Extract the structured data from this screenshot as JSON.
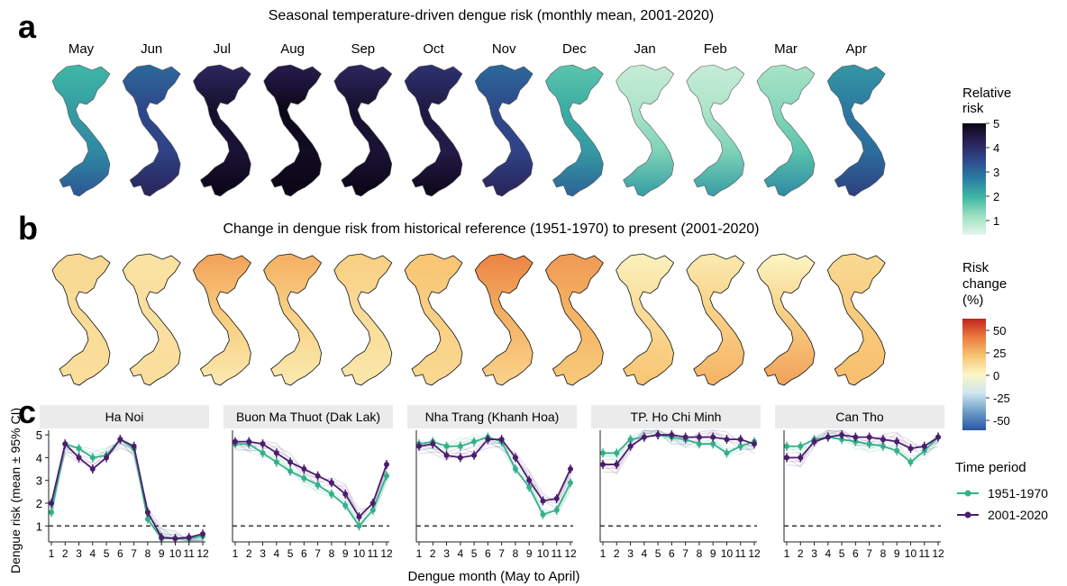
{
  "panel_a": {
    "letter": "a",
    "title": "Seasonal temperature-driven dengue risk (monthly mean, 2001-2020)",
    "months": [
      "May",
      "Jun",
      "Jul",
      "Aug",
      "Sep",
      "Oct",
      "Nov",
      "Dec",
      "Jan",
      "Feb",
      "Mar",
      "Apr"
    ],
    "month_levels": [
      0.35,
      0.6,
      0.85,
      0.9,
      0.85,
      0.8,
      0.6,
      0.3,
      0.08,
      0.08,
      0.15,
      0.45
    ],
    "legend_title": [
      "Relative",
      "risk"
    ],
    "legend_ticks": [
      "5",
      "4",
      "3",
      "2",
      "1"
    ],
    "colors": [
      "#e6f6ec",
      "#9fe0c1",
      "#3fb8a4",
      "#2b7fa3",
      "#2e4a8e",
      "#2c2158",
      "#0a0514"
    ]
  },
  "panel_b": {
    "letter": "b",
    "title": "Change in dengue risk from historical reference (1951-1970) to present (2001-2020)",
    "north_change": [
      12,
      8,
      30,
      26,
      16,
      20,
      38,
      32,
      2,
      5,
      0,
      12
    ],
    "south_change": [
      10,
      10,
      5,
      5,
      6,
      12,
      14,
      18,
      20,
      25,
      30,
      22
    ],
    "legend_title": [
      "Risk",
      "change",
      "(%)"
    ],
    "legend_ticks": [
      "50",
      "25",
      "0",
      "-25",
      "-50"
    ],
    "colors": [
      "#2a55a5",
      "#6d9dc9",
      "#cfe6ef",
      "#fbf6c4",
      "#f8c572",
      "#ea7c3e",
      "#c4231f"
    ]
  },
  "panel_c": {
    "letter": "c",
    "y_axis_label": "Dengue risk (mean ± 95% CI)",
    "x_axis_label": "Dengue month (May to April)"
  },
  "legend_c": {
    "title": "Time period",
    "items": [
      {
        "label": "1951-1970",
        "color": "#34b08a"
      },
      {
        "label": "2001-2020",
        "color": "#4b1d6e"
      }
    ]
  },
  "chart_data": {
    "type": "line",
    "x": [
      1,
      2,
      3,
      4,
      5,
      6,
      7,
      8,
      9,
      10,
      11,
      12
    ],
    "ylim": [
      0.3,
      5.2
    ],
    "yticks": [
      1,
      2,
      3,
      4,
      5
    ],
    "reference_line": 1,
    "panels": [
      {
        "title": "Ha Noi",
        "series": [
          {
            "name": "1951-1970",
            "values": [
              1.6,
              4.6,
              4.4,
              4.0,
              4.1,
              4.8,
              4.4,
              1.3,
              0.45,
              0.45,
              0.45,
              0.55
            ]
          },
          {
            "name": "2001-2020",
            "values": [
              2.0,
              4.6,
              4.0,
              3.5,
              4.0,
              4.8,
              4.5,
              1.6,
              0.5,
              0.45,
              0.5,
              0.65
            ]
          }
        ]
      },
      {
        "title": "Buon Ma Thuot (Dak Lak)",
        "series": [
          {
            "name": "1951-1970",
            "values": [
              4.6,
              4.6,
              4.2,
              3.8,
              3.4,
              3.1,
              2.8,
              2.4,
              1.9,
              1.0,
              1.7,
              3.2
            ]
          },
          {
            "name": "2001-2020",
            "values": [
              4.7,
              4.7,
              4.6,
              4.2,
              3.8,
              3.5,
              3.2,
              2.9,
              2.4,
              1.4,
              2.0,
              3.7
            ]
          }
        ]
      },
      {
        "title": "Nha Trang (Khanh Hoa)",
        "series": [
          {
            "name": "1951-1970",
            "values": [
              4.6,
              4.7,
              4.5,
              4.5,
              4.7,
              4.9,
              4.7,
              3.5,
              2.7,
              1.5,
              1.7,
              2.9
            ]
          },
          {
            "name": "2001-2020",
            "values": [
              4.5,
              4.6,
              4.1,
              4.0,
              4.1,
              4.8,
              4.8,
              4.0,
              3.0,
              2.1,
              2.2,
              3.5
            ]
          }
        ]
      },
      {
        "title": "TP. Ho Chi Minh",
        "series": [
          {
            "name": "1951-1970",
            "values": [
              4.2,
              4.2,
              4.8,
              4.9,
              5.0,
              4.9,
              4.8,
              4.6,
              4.6,
              4.2,
              4.5,
              4.7
            ]
          },
          {
            "name": "2001-2020",
            "values": [
              3.7,
              3.7,
              4.5,
              4.9,
              5.0,
              5.0,
              4.9,
              4.9,
              4.9,
              4.8,
              4.8,
              4.6
            ]
          }
        ]
      },
      {
        "title": "Can Tho",
        "series": [
          {
            "name": "1951-1970",
            "values": [
              4.5,
              4.5,
              4.8,
              4.9,
              4.8,
              4.7,
              4.6,
              4.5,
              4.3,
              3.8,
              4.3,
              4.9
            ]
          },
          {
            "name": "2001-2020",
            "values": [
              4.0,
              4.0,
              4.7,
              4.9,
              5.0,
              4.9,
              4.9,
              4.8,
              4.7,
              4.4,
              4.5,
              4.9
            ]
          }
        ]
      }
    ]
  }
}
